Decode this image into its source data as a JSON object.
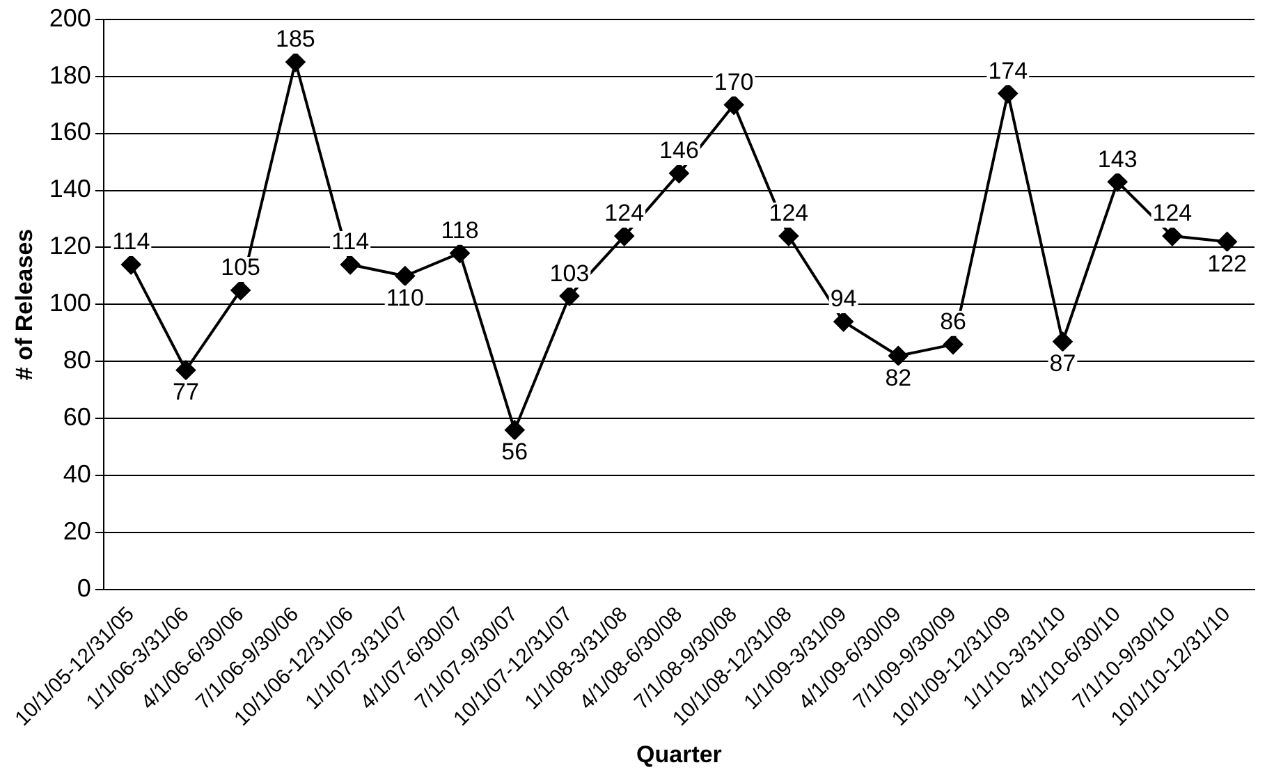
{
  "chart_data": {
    "type": "line",
    "xlabel": "Quarter",
    "ylabel": "# of Releases",
    "categories": [
      "10/1/05-12/31/05",
      "1/1/06-3/31/06",
      "4/1/06-6/30/06",
      "7/1/06-9/30/06",
      "10/1/06-12/31/06",
      "1/1/07-3/31/07",
      "4/1/07-6/30/07",
      "7/1/07-9/30/07",
      "10/1/07-12/31/07",
      "1/1/08-3/31/08",
      "4/1/08-6/30/08",
      "7/1/08-9/30/08",
      "10/1/08-12/31/08",
      "1/1/09-3/31/09",
      "4/1/09-6/30/09",
      "7/1/09-9/30/09",
      "10/1/09-12/31/09",
      "1/1/10-3/31/10",
      "4/1/10-6/30/10",
      "7/1/10-9/30/10",
      "10/1/10-12/31/10"
    ],
    "series": [
      {
        "color": "#000000",
        "values": [
          114,
          77,
          105,
          185,
          114,
          110,
          118,
          56,
          103,
          124,
          146,
          170,
          124,
          94,
          82,
          86,
          174,
          87,
          143,
          124,
          122
        ]
      }
    ],
    "ylim": [
      0,
      200
    ],
    "yticks": [
      0,
      20,
      40,
      60,
      80,
      100,
      120,
      140,
      160,
      180,
      200
    ],
    "grid": "y",
    "legend": false,
    "marker": "diamond",
    "line_style": "solid",
    "data_labels": true
  }
}
